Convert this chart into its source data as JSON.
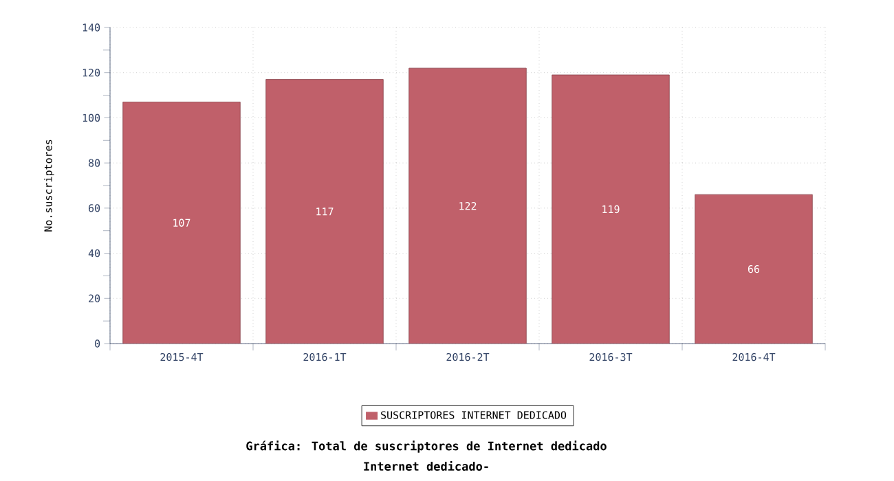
{
  "chart_data": {
    "type": "bar",
    "title": "Gráfica: Total de suscriptores de Internet dedicado",
    "subtitle": "Internet dedicado-",
    "ylabel": "No.suscriptores",
    "categories": [
      "2015-4T",
      "2016-1T",
      "2016-2T",
      "2016-3T",
      "2016-4T"
    ],
    "series": [
      {
        "name": "SUSCRIPTORES INTERNET DEDICADO",
        "color": "#c0606a",
        "values": [
          107,
          117,
          122,
          119,
          66
        ]
      }
    ],
    "ylim": [
      0,
      140
    ],
    "yticks": [
      0,
      20,
      40,
      60,
      80,
      100,
      120,
      140
    ],
    "grid": true,
    "legend": "bottom",
    "data_labels": true
  }
}
